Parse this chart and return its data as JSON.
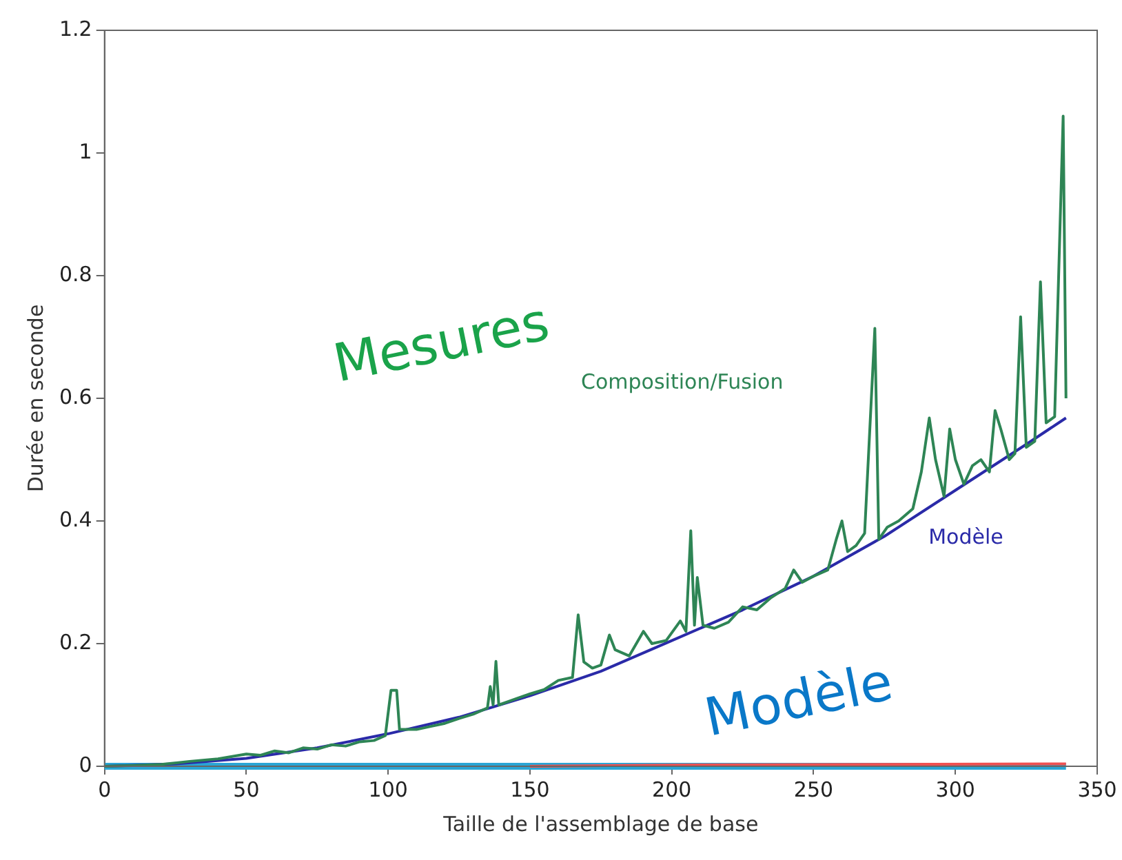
{
  "chart_data": {
    "type": "line",
    "xlabel": "Taille de l'assemblage de base",
    "ylabel": "Durée en seconde",
    "xlim": [
      0,
      350
    ],
    "xticks": [
      0,
      50,
      100,
      150,
      200,
      250,
      300,
      350
    ],
    "ylim": [
      0,
      1.2
    ],
    "yticks": [
      0,
      0.2,
      0.4,
      0.6,
      0.8,
      1,
      1.2
    ],
    "grid": false,
    "legend": false,
    "marker": "none",
    "line_style": "solid",
    "annotations": [
      "Mesures",
      "Modèle"
    ],
    "series": [
      {
        "name": "Composition/Fusion",
        "color": "#2e8555",
        "x": [
          0,
          10,
          20,
          30,
          40,
          50,
          55,
          60,
          65,
          70,
          75,
          80,
          85,
          90,
          95,
          99,
          101,
          103,
          104,
          110,
          115,
          120,
          125,
          130,
          135,
          136,
          137,
          138,
          139,
          145,
          150,
          155,
          160,
          165,
          167,
          169,
          172,
          175,
          178,
          180,
          185,
          190,
          193,
          198,
          203,
          205,
          206.7,
          208,
          209,
          211,
          215,
          220,
          225,
          230,
          235,
          240,
          243,
          246,
          250,
          255,
          258,
          260,
          262,
          265,
          268,
          271.6,
          273,
          276,
          280,
          285,
          288,
          290.8,
          293,
          296,
          298,
          300,
          303,
          306,
          309,
          312,
          314,
          316,
          319,
          321,
          323,
          325,
          328,
          330,
          332,
          335,
          338,
          339
        ],
        "values": [
          0,
          0.001,
          0.003,
          0.008,
          0.012,
          0.02,
          0.018,
          0.025,
          0.022,
          0.03,
          0.028,
          0.035,
          0.033,
          0.04,
          0.042,
          0.05,
          0.124,
          0.124,
          0.06,
          0.06,
          0.065,
          0.07,
          0.078,
          0.085,
          0.095,
          0.13,
          0.1,
          0.171,
          0.1,
          0.11,
          0.118,
          0.125,
          0.14,
          0.145,
          0.247,
          0.17,
          0.16,
          0.165,
          0.214,
          0.19,
          0.18,
          0.22,
          0.2,
          0.205,
          0.237,
          0.22,
          0.384,
          0.23,
          0.308,
          0.23,
          0.225,
          0.235,
          0.26,
          0.255,
          0.275,
          0.29,
          0.32,
          0.3,
          0.31,
          0.32,
          0.37,
          0.4,
          0.35,
          0.36,
          0.38,
          0.714,
          0.37,
          0.39,
          0.4,
          0.42,
          0.48,
          0.568,
          0.5,
          0.44,
          0.55,
          0.5,
          0.46,
          0.49,
          0.5,
          0.48,
          0.58,
          0.55,
          0.5,
          0.51,
          0.733,
          0.52,
          0.53,
          0.79,
          0.56,
          0.57,
          1.06,
          0.6
        ]
      },
      {
        "name": "Modèle",
        "color": "#2a2aa8",
        "x": [
          0,
          25,
          50,
          75,
          100,
          125,
          150,
          175,
          200,
          225,
          250,
          275,
          300,
          325,
          339
        ],
        "values": [
          0,
          0.004,
          0.013,
          0.03,
          0.053,
          0.08,
          0.115,
          0.155,
          0.205,
          0.255,
          0.31,
          0.375,
          0.45,
          0.525,
          0.568
        ]
      },
      {
        "color": "#f05050",
        "x": [
          150,
          200,
          270,
          339
        ],
        "values": [
          0,
          0.002,
          0.003,
          0.004
        ]
      },
      {
        "color": "#2aa5d5",
        "x": [
          0,
          339
        ],
        "values": [
          0,
          0
        ]
      }
    ]
  }
}
